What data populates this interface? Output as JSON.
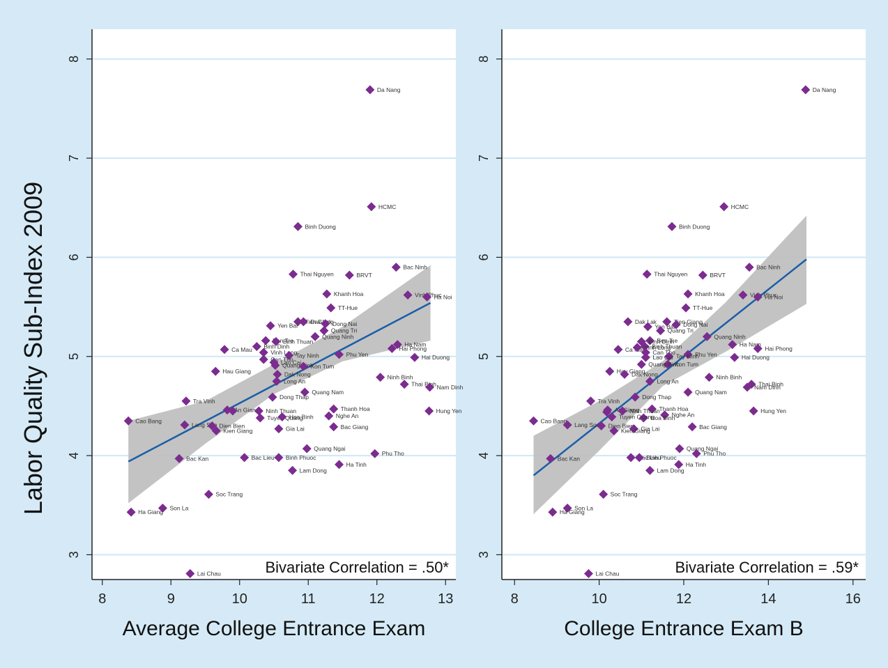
{
  "figure": {
    "ylabel": "Labor Quality Sub-Index 2009"
  },
  "chart_data": [
    {
      "type": "scatter",
      "xlabel": "Average College Entrance Exam",
      "ylabel": "Labor Quality Sub-Index 2009",
      "xlim": [
        7.85,
        13.15
      ],
      "ylim": [
        2.75,
        8.3
      ],
      "xticks": [
        8,
        9,
        10,
        11,
        12,
        13
      ],
      "yticks": [
        3,
        4,
        5,
        6,
        7,
        8
      ],
      "grid": "horizontal",
      "annotation": "Bivariate Correlation = .50*",
      "fit": {
        "x": [
          8.38,
          12.78
        ],
        "y": [
          3.94,
          5.54
        ]
      },
      "band": {
        "x": [
          8.38,
          9.5,
          10.5,
          11.5,
          12.78
        ],
        "lower": [
          3.52,
          4.12,
          4.62,
          4.95,
          5.16
        ],
        "upper": [
          4.35,
          4.55,
          4.92,
          5.3,
          5.92
        ]
      },
      "points": [
        {
          "name": "Da Nang",
          "x": 11.9,
          "y": 7.69
        },
        {
          "name": "HCMC",
          "x": 11.92,
          "y": 6.51
        },
        {
          "name": "Binh Duong",
          "x": 10.85,
          "y": 6.31
        },
        {
          "name": "Bac Ninh",
          "x": 12.28,
          "y": 5.9
        },
        {
          "name": "Thai Nguyen",
          "x": 10.78,
          "y": 5.83
        },
        {
          "name": "BRVT",
          "x": 11.6,
          "y": 5.82
        },
        {
          "name": "Khanh Hoa",
          "x": 11.27,
          "y": 5.63
        },
        {
          "name": "Vinh Phuc",
          "x": 12.45,
          "y": 5.62
        },
        {
          "name": "Ha Noi",
          "x": 12.73,
          "y": 5.6
        },
        {
          "name": "TT-Hue",
          "x": 11.33,
          "y": 5.49
        },
        {
          "name": "Tien Giang",
          "x": 10.85,
          "y": 5.35
        },
        {
          "name": "Dak Lak",
          "x": 10.93,
          "y": 5.35
        },
        {
          "name": "Dong Nai",
          "x": 11.25,
          "y": 5.33
        },
        {
          "name": "Yen Bai",
          "x": 10.45,
          "y": 5.31
        },
        {
          "name": "Quang Tri",
          "x": 11.23,
          "y": 5.26
        },
        {
          "name": "Quang Ninh",
          "x": 11.1,
          "y": 5.2
        },
        {
          "name": "Ben Tre",
          "x": 10.38,
          "y": 5.16
        },
        {
          "name": "Binh Thuan",
          "x": 10.53,
          "y": 5.15
        },
        {
          "name": "Ha Nam",
          "x": 12.3,
          "y": 5.12
        },
        {
          "name": "Binh Dinh",
          "x": 10.25,
          "y": 5.1
        },
        {
          "name": "Hai Phong",
          "x": 12.22,
          "y": 5.08
        },
        {
          "name": "Ca Mau",
          "x": 9.78,
          "y": 5.07
        },
        {
          "name": "Vinh Long",
          "x": 10.35,
          "y": 5.04
        },
        {
          "name": "Phu Yen",
          "x": 11.45,
          "y": 5.02
        },
        {
          "name": "Tay Ninh",
          "x": 10.72,
          "y": 5.01
        },
        {
          "name": "Hai Duong",
          "x": 12.55,
          "y": 4.99
        },
        {
          "name": "Can Tho",
          "x": 10.35,
          "y": 4.97
        },
        {
          "name": "Lao Cai",
          "x": 10.5,
          "y": 4.94
        },
        {
          "name": "Quang Binh",
          "x": 10.52,
          "y": 4.91
        },
        {
          "name": "Kon Tum",
          "x": 10.93,
          "y": 4.9
        },
        {
          "name": "Hau Giang",
          "x": 9.65,
          "y": 4.85
        },
        {
          "name": "Dak Nong",
          "x": 10.55,
          "y": 4.82
        },
        {
          "name": "Ninh Binh",
          "x": 12.05,
          "y": 4.79
        },
        {
          "name": "Long An",
          "x": 10.54,
          "y": 4.75
        },
        {
          "name": "Thai Binh",
          "x": 12.4,
          "y": 4.72
        },
        {
          "name": "Nam Dinh",
          "x": 12.77,
          "y": 4.69
        },
        {
          "name": "Quang Nam",
          "x": 10.95,
          "y": 4.64
        },
        {
          "name": "Dong Thap",
          "x": 10.48,
          "y": 4.59
        },
        {
          "name": "Tra Vinh",
          "x": 9.22,
          "y": 4.55
        },
        {
          "name": "Thanh Hoa",
          "x": 11.37,
          "y": 4.47
        },
        {
          "name": "An Giang",
          "x": 9.82,
          "y": 4.46
        },
        {
          "name": "Binh Phuoc (dup)",
          "x": 9.9,
          "y": 4.45
        },
        {
          "name": "Ninh Thuan",
          "x": 10.28,
          "y": 4.45
        },
        {
          "name": "Hung Yen",
          "x": 12.76,
          "y": 4.45
        },
        {
          "name": "Nghe An",
          "x": 11.3,
          "y": 4.4
        },
        {
          "name": "Tuyen Quang",
          "x": 10.3,
          "y": 4.38
        },
        {
          "name": "Hoa Binh",
          "x": 10.62,
          "y": 4.39
        },
        {
          "name": "Cao Bang",
          "x": 8.38,
          "y": 4.35
        },
        {
          "name": "Lang Son",
          "x": 9.2,
          "y": 4.31
        },
        {
          "name": "Dien Bien",
          "x": 9.6,
          "y": 4.3
        },
        {
          "name": "Bac Giang",
          "x": 11.37,
          "y": 4.29
        },
        {
          "name": "Kien Giang",
          "x": 9.66,
          "y": 4.25
        },
        {
          "name": "Gia Lai",
          "x": 10.57,
          "y": 4.27
        },
        {
          "name": "Quang Ngai",
          "x": 10.98,
          "y": 4.07
        },
        {
          "name": "Phu Tho",
          "x": 11.97,
          "y": 4.02
        },
        {
          "name": "Bac Kan",
          "x": 9.12,
          "y": 3.97
        },
        {
          "name": "Bac Lieu",
          "x": 10.07,
          "y": 3.98
        },
        {
          "name": "Binh Phuoc",
          "x": 10.57,
          "y": 3.98
        },
        {
          "name": "Ha Tinh",
          "x": 11.45,
          "y": 3.91
        },
        {
          "name": "Lam Dong",
          "x": 10.77,
          "y": 3.85
        },
        {
          "name": "Soc Trang",
          "x": 9.55,
          "y": 3.61
        },
        {
          "name": "Son La",
          "x": 8.88,
          "y": 3.47
        },
        {
          "name": "Ha Giang",
          "x": 8.42,
          "y": 3.43
        },
        {
          "name": "Lai Chau",
          "x": 9.28,
          "y": 2.81
        }
      ]
    },
    {
      "type": "scatter",
      "xlabel": "College Entrance Exam B",
      "ylabel": "Labor Quality Sub-Index 2009",
      "xlim": [
        7.7,
        16.3
      ],
      "ylim": [
        2.75,
        8.3
      ],
      "xticks": [
        8,
        10,
        12,
        14,
        16
      ],
      "yticks": [
        3,
        4,
        5,
        6,
        7,
        8
      ],
      "grid": "horizontal",
      "annotation": "Bivariate Correlation = .59*",
      "fit": {
        "x": [
          8.45,
          14.9
        ],
        "y": [
          3.8,
          5.98
        ]
      },
      "band": {
        "x": [
          8.45,
          10,
          11.5,
          13,
          14.9
        ],
        "lower": [
          3.41,
          4.05,
          4.7,
          5.05,
          5.53
        ],
        "upper": [
          4.2,
          4.55,
          4.95,
          5.55,
          6.42
        ]
      },
      "points": [
        {
          "name": "Da Nang",
          "x": 14.88,
          "y": 7.69
        },
        {
          "name": "HCMC",
          "x": 12.95,
          "y": 6.51
        },
        {
          "name": "Binh Duong",
          "x": 11.72,
          "y": 6.31
        },
        {
          "name": "Bac Ninh",
          "x": 13.55,
          "y": 5.9
        },
        {
          "name": "Thai Nguyen",
          "x": 11.13,
          "y": 5.83
        },
        {
          "name": "BRVT",
          "x": 12.45,
          "y": 5.82
        },
        {
          "name": "Khanh Hoa",
          "x": 12.1,
          "y": 5.63
        },
        {
          "name": "Vinh Phuc",
          "x": 13.4,
          "y": 5.62
        },
        {
          "name": "Ha Noi",
          "x": 13.75,
          "y": 5.6
        },
        {
          "name": "TT-Hue",
          "x": 12.05,
          "y": 5.49
        },
        {
          "name": "Dak Lak",
          "x": 10.68,
          "y": 5.35
        },
        {
          "name": "Tien Giang",
          "x": 11.6,
          "y": 5.35
        },
        {
          "name": "Yen Bai",
          "x": 11.15,
          "y": 5.3
        },
        {
          "name": "Dong Nai",
          "x": 11.82,
          "y": 5.32
        },
        {
          "name": "Quang Tri",
          "x": 11.45,
          "y": 5.26
        },
        {
          "name": "Quang Ninh",
          "x": 12.55,
          "y": 5.2
        },
        {
          "name": "Ben Tre",
          "x": 11.2,
          "y": 5.16
        },
        {
          "name": "Binh Dinh",
          "x": 11.0,
          "y": 5.15
        },
        {
          "name": "Binh Thuan",
          "x": 11.08,
          "y": 5.1
        },
        {
          "name": "Ha Nam",
          "x": 13.15,
          "y": 5.12
        },
        {
          "name": "Hai Phong",
          "x": 13.75,
          "y": 5.08
        },
        {
          "name": "Ca Mau",
          "x": 10.45,
          "y": 5.07
        },
        {
          "name": "Vinh Long",
          "x": 10.9,
          "y": 5.09
        },
        {
          "name": "Can Tho",
          "x": 11.1,
          "y": 5.04
        },
        {
          "name": "Phu Yen",
          "x": 12.1,
          "y": 5.02
        },
        {
          "name": "Tay Ninh",
          "x": 11.65,
          "y": 5.0
        },
        {
          "name": "Lao Cai",
          "x": 11.1,
          "y": 4.99
        },
        {
          "name": "Hai Duong",
          "x": 13.2,
          "y": 4.99
        },
        {
          "name": "Kon Tum",
          "x": 11.62,
          "y": 4.92
        },
        {
          "name": "Quang Binh",
          "x": 11.0,
          "y": 4.92
        },
        {
          "name": "Hau Giang",
          "x": 10.25,
          "y": 4.85
        },
        {
          "name": "Dak Nong",
          "x": 10.6,
          "y": 4.82
        },
        {
          "name": "Ninh Binh",
          "x": 12.6,
          "y": 4.79
        },
        {
          "name": "Long An",
          "x": 11.2,
          "y": 4.75
        },
        {
          "name": "Thai Binh",
          "x": 13.6,
          "y": 4.72
        },
        {
          "name": "Nam Dinh",
          "x": 13.5,
          "y": 4.69
        },
        {
          "name": "Quang Nam",
          "x": 12.1,
          "y": 4.64
        },
        {
          "name": "Dong Thap",
          "x": 10.85,
          "y": 4.59
        },
        {
          "name": "Tra Vinh",
          "x": 9.8,
          "y": 4.55
        },
        {
          "name": "Thanh Hoa",
          "x": 11.25,
          "y": 4.47
        },
        {
          "name": "An Giang",
          "x": 10.2,
          "y": 4.46
        },
        {
          "name": "An Giang 2",
          "x": 10.18,
          "y": 4.44
        },
        {
          "name": "Ninh Thuan",
          "x": 10.55,
          "y": 4.45
        },
        {
          "name": "Hung Yen",
          "x": 13.65,
          "y": 4.45
        },
        {
          "name": "Nghe An",
          "x": 11.55,
          "y": 4.41
        },
        {
          "name": "Hoa Binh",
          "x": 11.05,
          "y": 4.38
        },
        {
          "name": "Tuyen Quang",
          "x": 10.3,
          "y": 4.39
        },
        {
          "name": "Cao Bang",
          "x": 8.45,
          "y": 4.35
        },
        {
          "name": "Lang Son",
          "x": 9.25,
          "y": 4.31
        },
        {
          "name": "Dien Bien",
          "x": 10.05,
          "y": 4.3
        },
        {
          "name": "Bac Giang",
          "x": 12.2,
          "y": 4.29
        },
        {
          "name": "Gia Lai",
          "x": 10.82,
          "y": 4.27
        },
        {
          "name": "Kien Giang",
          "x": 10.35,
          "y": 4.25
        },
        {
          "name": "Quang Ngai",
          "x": 11.9,
          "y": 4.07
        },
        {
          "name": "Phu Tho",
          "x": 12.3,
          "y": 4.02
        },
        {
          "name": "Bac Kan",
          "x": 8.85,
          "y": 3.97
        },
        {
          "name": "Bac Lieu",
          "x": 10.75,
          "y": 3.98
        },
        {
          "name": "Binh Phuoc",
          "x": 10.95,
          "y": 3.98
        },
        {
          "name": "Ha Tinh",
          "x": 11.88,
          "y": 3.91
        },
        {
          "name": "Lam Dong",
          "x": 11.2,
          "y": 3.85
        },
        {
          "name": "Soc Trang",
          "x": 10.1,
          "y": 3.61
        },
        {
          "name": "Son La",
          "x": 9.25,
          "y": 3.47
        },
        {
          "name": "Ha Giang",
          "x": 8.9,
          "y": 3.43
        },
        {
          "name": "Lai Chau",
          "x": 9.75,
          "y": 2.81
        }
      ]
    }
  ],
  "colors": {
    "background": "#d5eaf6",
    "panel": "#ffffff",
    "grid": "#cfe8f5",
    "marker": "#7b2c8e",
    "fit": "#1a5ea8",
    "band": "#bdbdbd"
  }
}
